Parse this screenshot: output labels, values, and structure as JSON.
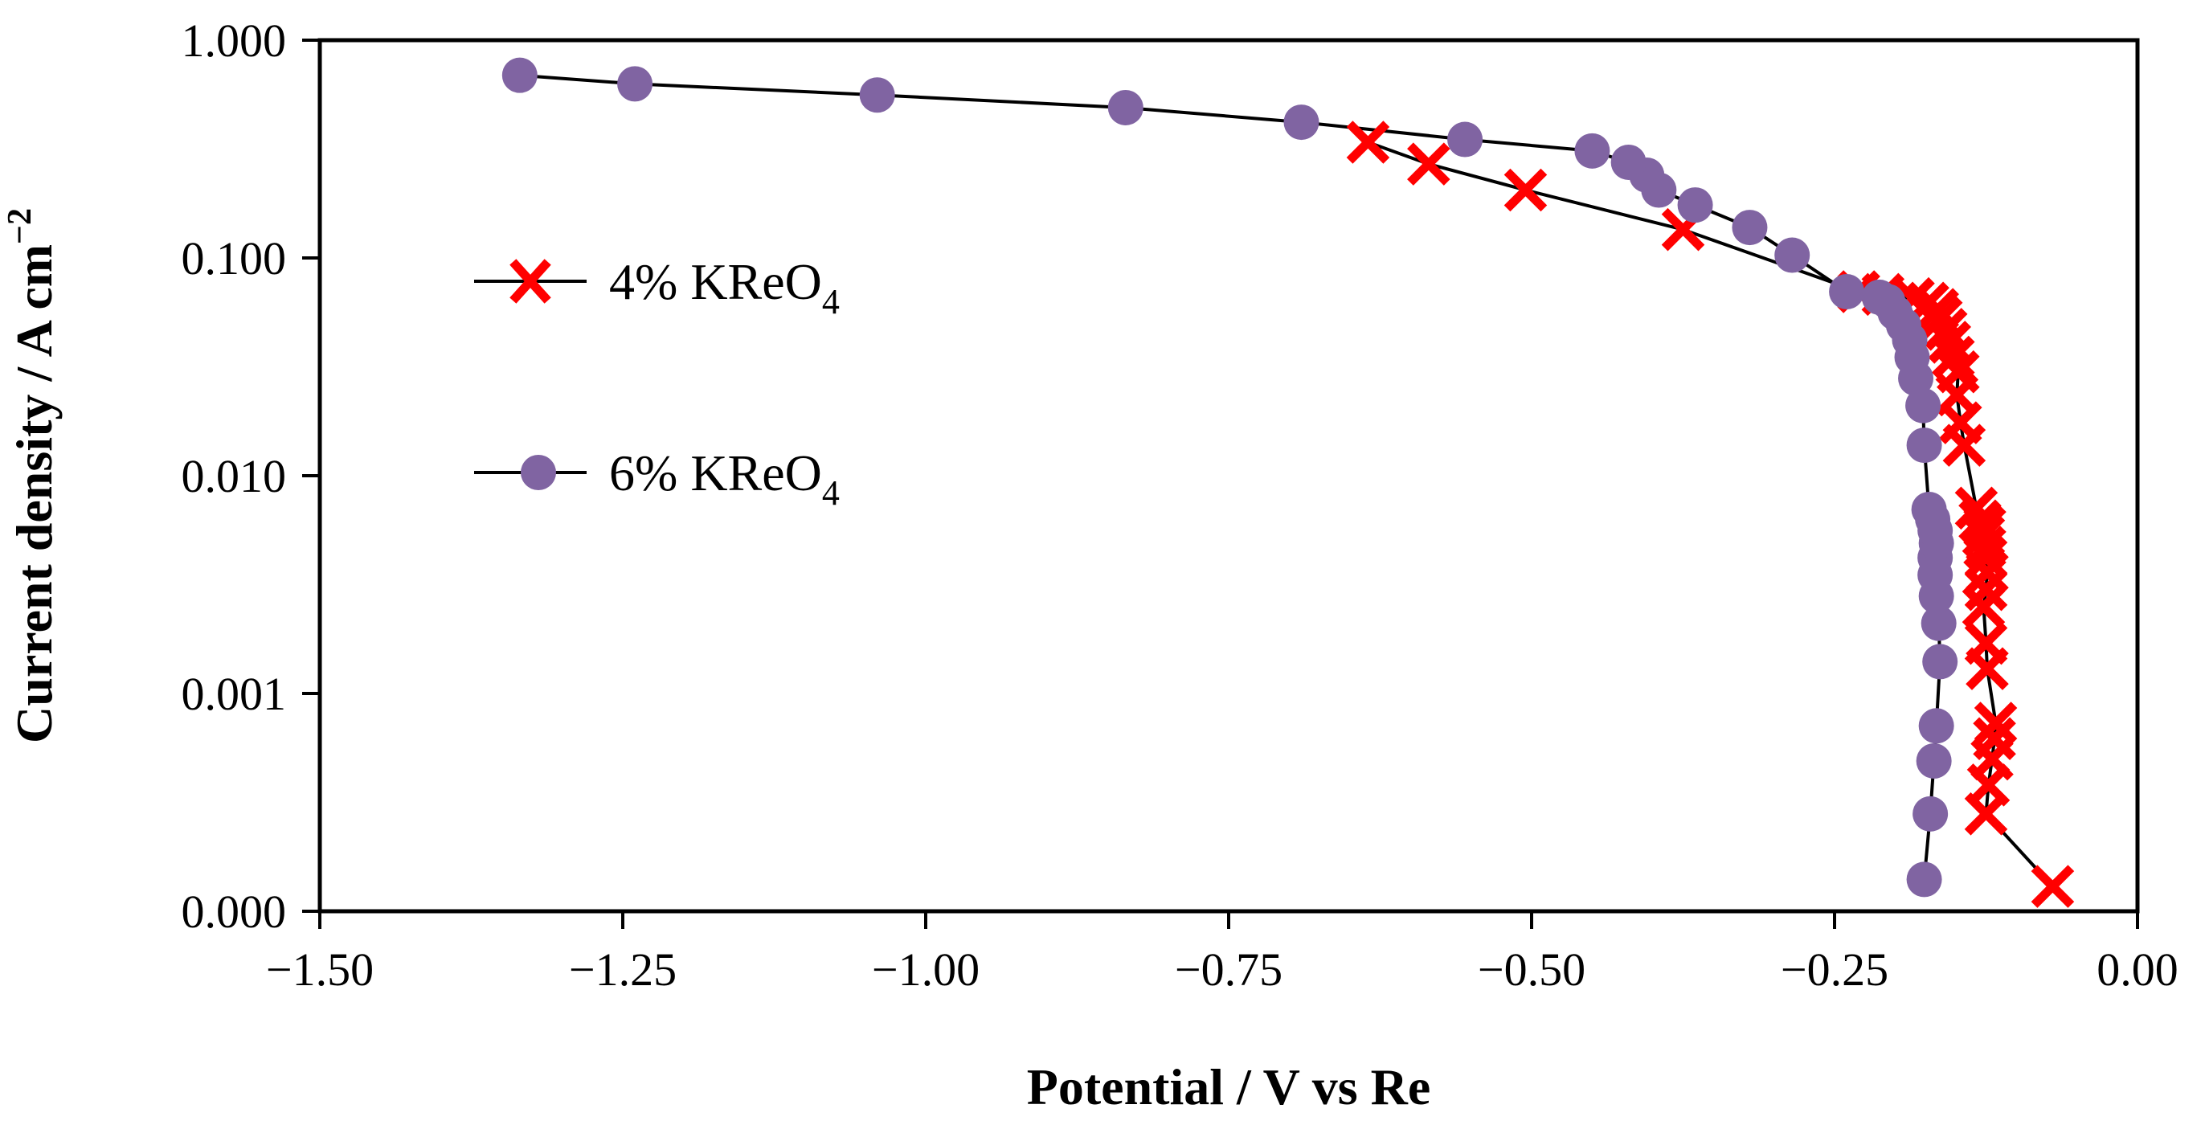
{
  "chart_data": {
    "type": "scatter",
    "xlabel": "Potential / V vs Re",
    "ylabel": "Current density / A cm",
    "ylabel_sup": "−2",
    "xlim": [
      -1.5,
      0.0
    ],
    "ylim": [
      0.0001,
      1.0
    ],
    "y_scale": "log",
    "x_ticks": [
      -1.5,
      -1.25,
      -1.0,
      -0.75,
      -0.5,
      -0.25,
      0.0
    ],
    "x_tick_labels": [
      "−1.50",
      "−1.25",
      "−1.00",
      "−0.75",
      "−0.50",
      "−0.25",
      "0.00"
    ],
    "y_ticks": [
      0.0001,
      0.001,
      0.01,
      0.1,
      1.0
    ],
    "y_tick_labels": [
      "0.000",
      "0.001",
      "0.010",
      "0.100",
      "1.000"
    ],
    "grid": false,
    "legend_position": "center-left",
    "series": [
      {
        "name": "4% KReO",
        "name_sub": "4",
        "marker": "cross",
        "color": "#ff0000",
        "line_color": "#000000",
        "points": [
          [
            -0.07,
            0.00013
          ],
          [
            -0.125,
            0.00028
          ],
          [
            -0.123,
            0.00038
          ],
          [
            -0.12,
            0.0005
          ],
          [
            -0.118,
            0.00062
          ],
          [
            -0.117,
            0.00073
          ],
          [
            -0.124,
            0.0013
          ],
          [
            -0.125,
            0.0017
          ],
          [
            -0.127,
            0.0025
          ],
          [
            -0.125,
            0.003
          ],
          [
            -0.124,
            0.0036
          ],
          [
            -0.125,
            0.0042
          ],
          [
            -0.126,
            0.0047
          ],
          [
            -0.127,
            0.0053
          ],
          [
            -0.126,
            0.0058
          ],
          [
            -0.13,
            0.0062
          ],
          [
            -0.133,
            0.0071
          ],
          [
            -0.143,
            0.0138
          ],
          [
            -0.146,
            0.0175
          ],
          [
            -0.149,
            0.0235
          ],
          [
            -0.148,
            0.03
          ],
          [
            -0.152,
            0.035
          ],
          [
            -0.155,
            0.041
          ],
          [
            -0.158,
            0.047
          ],
          [
            -0.162,
            0.053
          ],
          [
            -0.165,
            0.058
          ],
          [
            -0.173,
            0.062
          ],
          [
            -0.185,
            0.065
          ],
          [
            -0.21,
            0.068
          ],
          [
            -0.23,
            0.07
          ],
          [
            -0.375,
            0.135
          ],
          [
            -0.505,
            0.205
          ],
          [
            -0.585,
            0.27
          ],
          [
            -0.635,
            0.34
          ]
        ]
      },
      {
        "name": "6% KReO",
        "name_sub": "4",
        "marker": "circle",
        "color": "#8064a2",
        "line_color": "#000000",
        "points": [
          [
            -0.176,
            0.00014
          ],
          [
            -0.171,
            0.00028
          ],
          [
            -0.168,
            0.00049
          ],
          [
            -0.166,
            0.00071
          ],
          [
            -0.163,
            0.0014
          ],
          [
            -0.164,
            0.0021
          ],
          [
            -0.166,
            0.0028
          ],
          [
            -0.167,
            0.0035
          ],
          [
            -0.167,
            0.0042
          ],
          [
            -0.166,
            0.0049
          ],
          [
            -0.167,
            0.0056
          ],
          [
            -0.169,
            0.0063
          ],
          [
            -0.172,
            0.007
          ],
          [
            -0.176,
            0.0138
          ],
          [
            -0.177,
            0.021
          ],
          [
            -0.183,
            0.028
          ],
          [
            -0.186,
            0.035
          ],
          [
            -0.188,
            0.042
          ],
          [
            -0.193,
            0.049
          ],
          [
            -0.2,
            0.056
          ],
          [
            -0.206,
            0.063
          ],
          [
            -0.213,
            0.066
          ],
          [
            -0.24,
            0.07
          ],
          [
            -0.285,
            0.103
          ],
          [
            -0.32,
            0.138
          ],
          [
            -0.365,
            0.175
          ],
          [
            -0.395,
            0.205
          ],
          [
            -0.405,
            0.24
          ],
          [
            -0.42,
            0.275
          ],
          [
            -0.45,
            0.31
          ],
          [
            -0.555,
            0.35
          ],
          [
            -0.69,
            0.42
          ],
          [
            -0.835,
            0.49
          ],
          [
            -1.04,
            0.56
          ],
          [
            -1.24,
            0.63
          ],
          [
            -1.335,
            0.69
          ]
        ]
      }
    ]
  }
}
